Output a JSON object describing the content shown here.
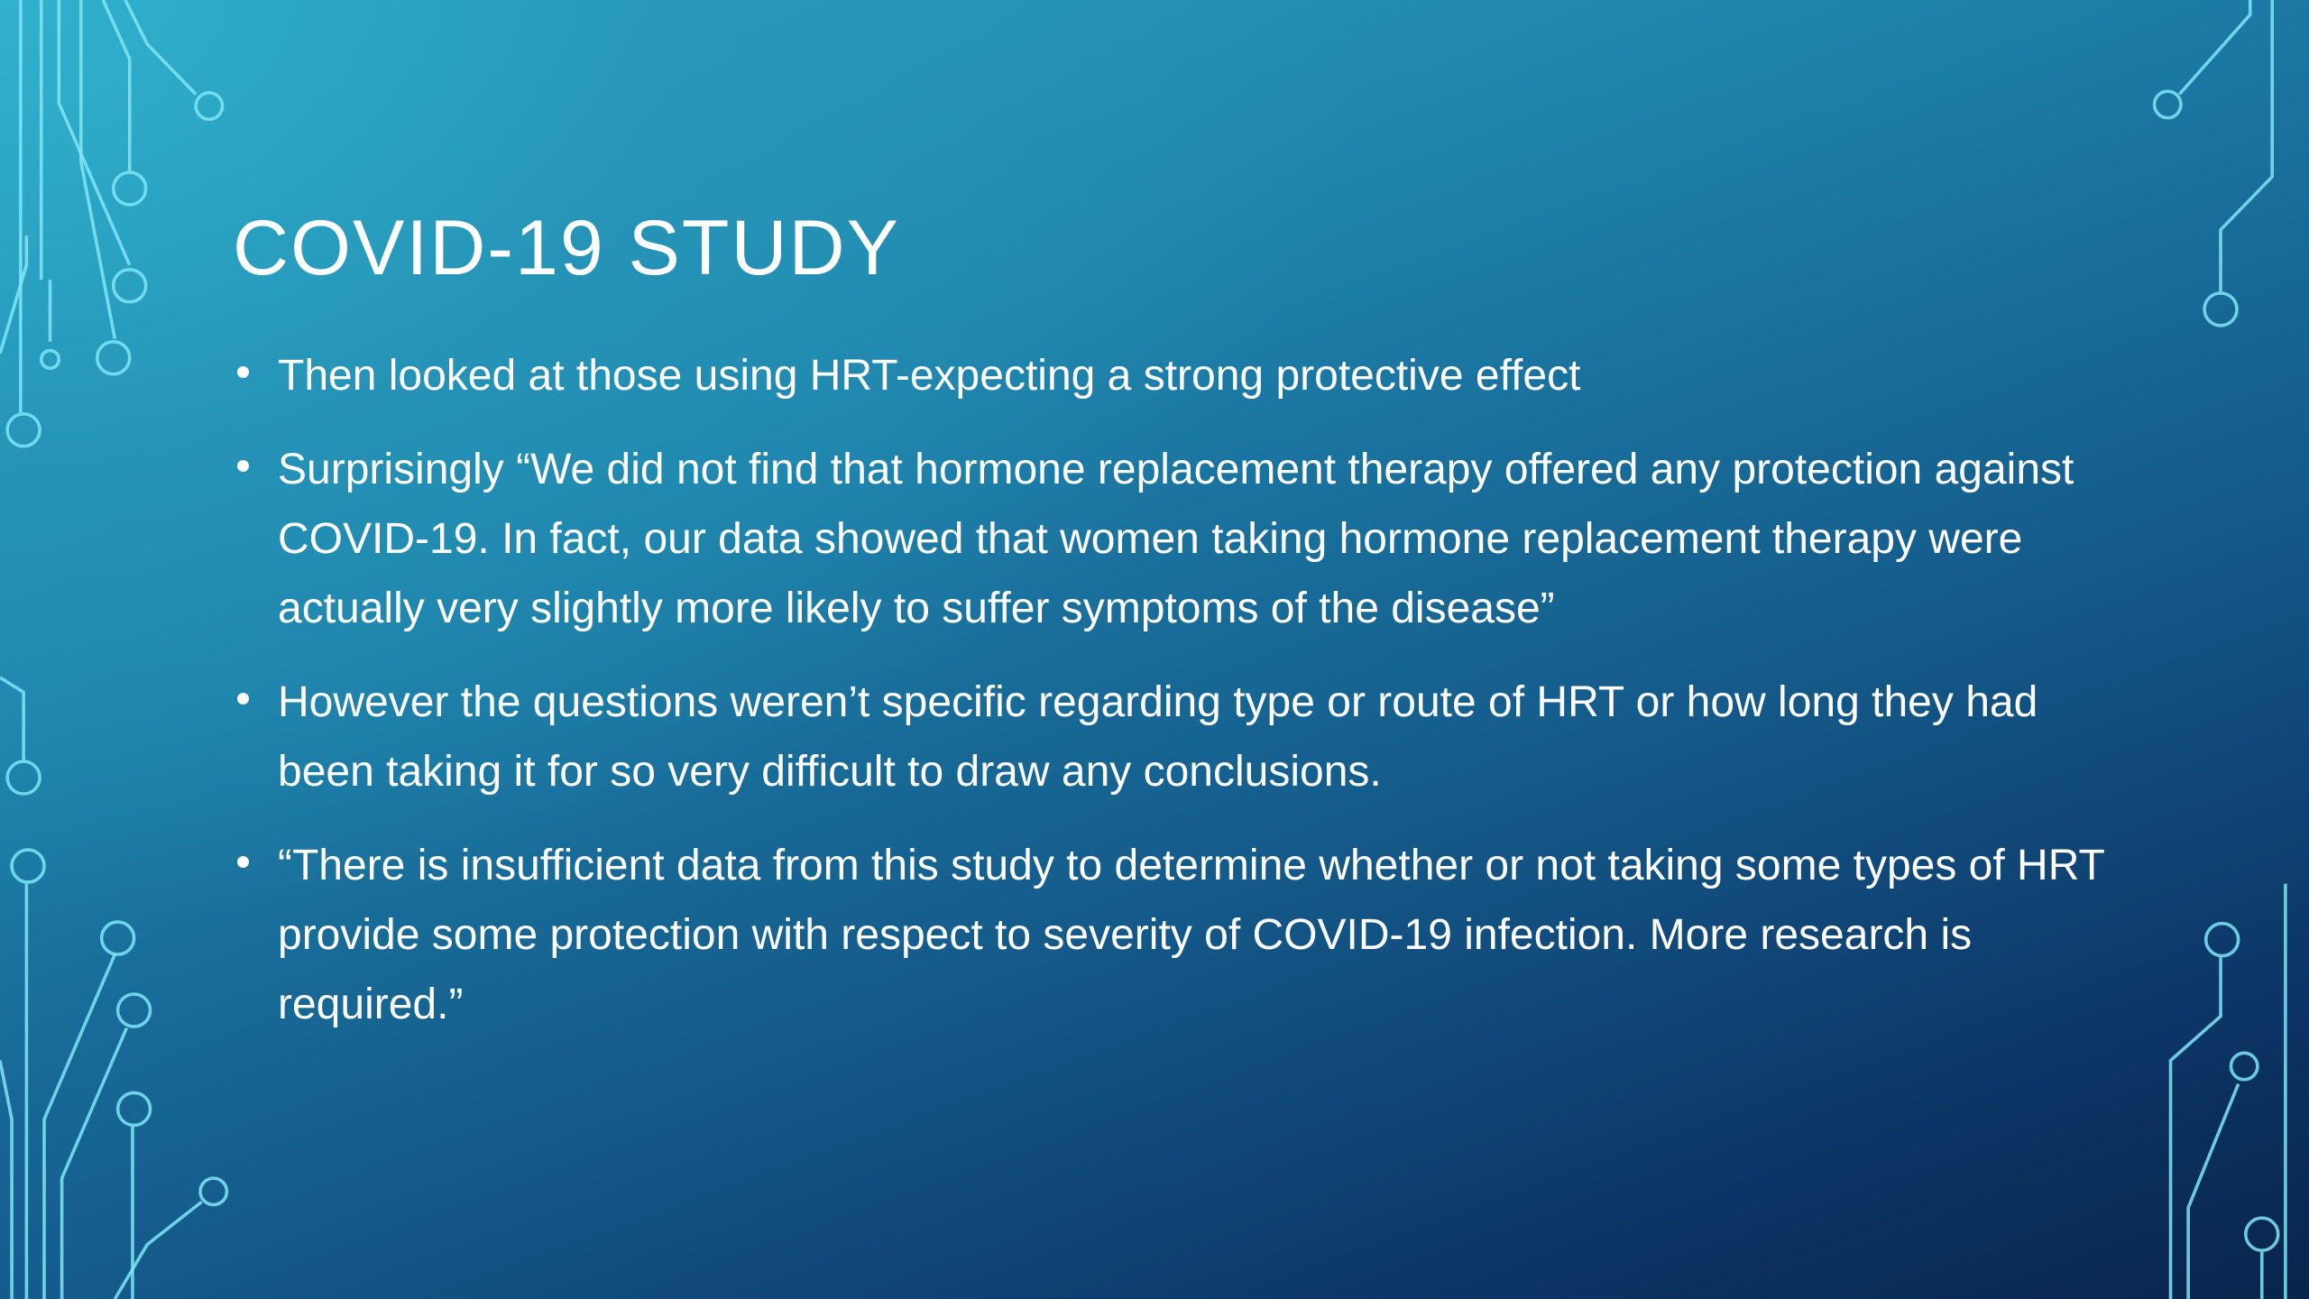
{
  "slide": {
    "title": "COVID-19 STUDY",
    "bullets": [
      "Then looked at those using HRT-expecting a strong protective effect",
      "Surprisingly “We did not find that hormone replacement therapy offered any protection against COVID-19. In fact, our data showed that women taking hormone replacement therapy were actually very slightly more likely to suffer symptoms of the disease”",
      "However the questions weren’t specific regarding type or route of HRT or how long they had been taking it for so very difficult to draw any conclusions.",
      "“There is insufficient data from this study to determine whether or not taking some types of HRT provide some protection with respect to severity of COVID-19 infection. More research is required.”"
    ]
  }
}
